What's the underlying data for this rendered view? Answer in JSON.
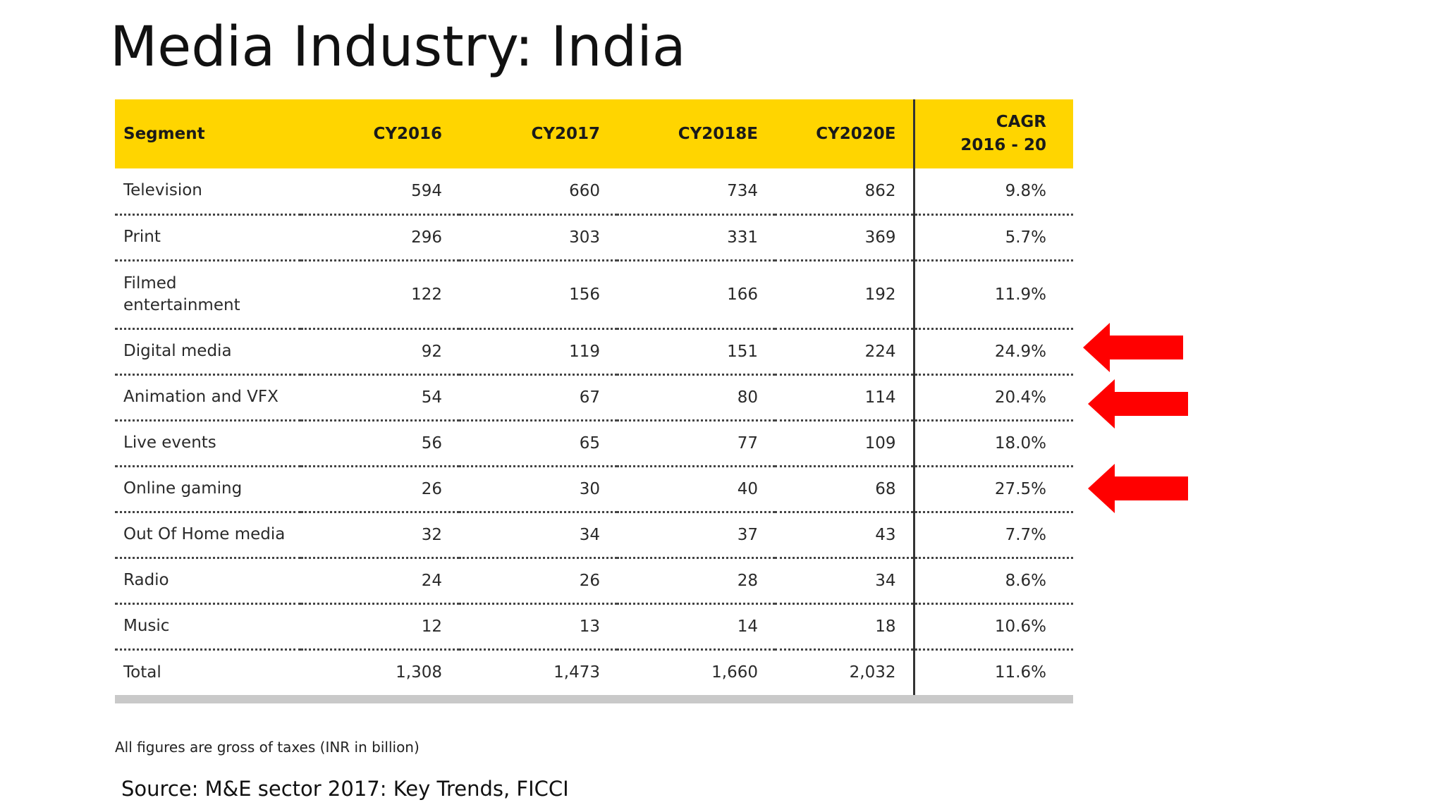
{
  "title": "Media Industry: India",
  "chart_data": {
    "type": "table",
    "columns": [
      "Segment",
      "CY2016",
      "CY2017",
      "CY2018E",
      "CY2020E",
      "CAGR 2016 - 20"
    ],
    "cagr_header_lines": [
      "CAGR",
      "2016 - 20"
    ],
    "rows": [
      {
        "segment": "Television",
        "cy2016": "594",
        "cy2017": "660",
        "cy2018e": "734",
        "cy2020e": "862",
        "cagr": "9.8%"
      },
      {
        "segment": "Print",
        "cy2016": "296",
        "cy2017": "303",
        "cy2018e": "331",
        "cy2020e": "369",
        "cagr": "5.7%"
      },
      {
        "segment": "Filmed entertainment",
        "cy2016": "122",
        "cy2017": "156",
        "cy2018e": "166",
        "cy2020e": "192",
        "cagr": "11.9%"
      },
      {
        "segment": "Digital media",
        "cy2016": "92",
        "cy2017": "119",
        "cy2018e": "151",
        "cy2020e": "224",
        "cagr": "24.9%"
      },
      {
        "segment": "Animation and VFX",
        "cy2016": "54",
        "cy2017": "67",
        "cy2018e": "80",
        "cy2020e": "114",
        "cagr": "20.4%"
      },
      {
        "segment": "Live events",
        "cy2016": "56",
        "cy2017": "65",
        "cy2018e": "77",
        "cy2020e": "109",
        "cagr": "18.0%"
      },
      {
        "segment": "Online gaming",
        "cy2016": "26",
        "cy2017": "30",
        "cy2018e": "40",
        "cy2020e": "68",
        "cagr": "27.5%"
      },
      {
        "segment": "Out Of Home media",
        "cy2016": "32",
        "cy2017": "34",
        "cy2018e": "37",
        "cy2020e": "43",
        "cagr": "7.7%"
      },
      {
        "segment": "Radio",
        "cy2016": "24",
        "cy2017": "26",
        "cy2018e": "28",
        "cy2020e": "34",
        "cagr": "8.6%"
      },
      {
        "segment": "Music",
        "cy2016": "12",
        "cy2017": "13",
        "cy2018e": "14",
        "cy2020e": "18",
        "cagr": "10.6%"
      },
      {
        "segment": "Total",
        "cy2016": "1,308",
        "cy2017": "1,473",
        "cy2018e": "1,660",
        "cy2020e": "2,032",
        "cagr": "11.6%"
      }
    ],
    "highlighted_rows": [
      "Digital media",
      "Animation and VFX",
      "Online gaming"
    ],
    "header_color": "#ffd500",
    "arrow_color": "#ff0000"
  },
  "note": "All figures are gross of taxes (INR in billion)",
  "source": "Source: M&E sector 2017: Key Trends, FICCI"
}
